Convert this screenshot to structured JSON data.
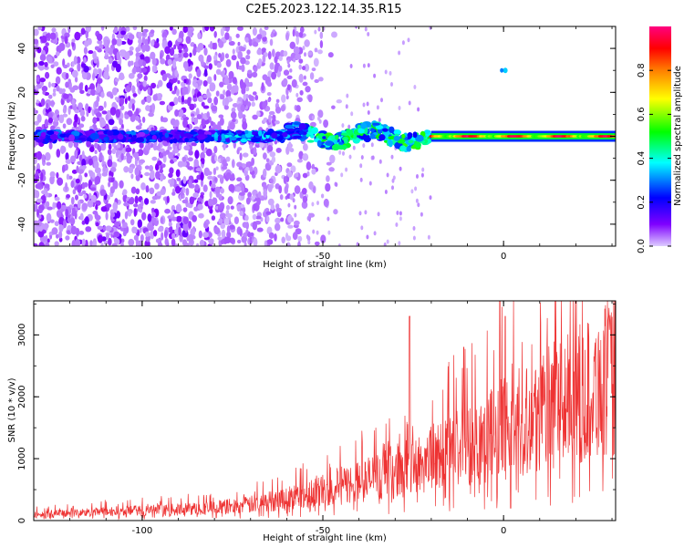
{
  "title": "C2E5.2023.122.14.35.R15",
  "chart_data": [
    {
      "type": "heatmap",
      "xlabel": "Height of straight line (km)",
      "ylabel": "Frequency (Hz)",
      "xlim": [
        -130,
        31
      ],
      "ylim": [
        -50,
        50
      ],
      "x_ticks": [
        -100,
        -50,
        0
      ],
      "x_tick_labels": [
        "-100",
        "-50",
        "0"
      ],
      "y_ticks": [
        -40,
        -20,
        0,
        20,
        40
      ],
      "y_tick_labels": [
        "-40",
        "-20",
        "0",
        "20",
        "40"
      ],
      "colorbar": {
        "label": "Normalized spectral amplitude",
        "range": [
          0,
          1
        ],
        "ticks": [
          0,
          0.2,
          0.4,
          0.6,
          0.8
        ],
        "tick_labels": [
          "0.0",
          "0.2",
          "0.4",
          "0.6",
          "0.8"
        ],
        "colors": [
          "#ddccff",
          "#7f00ff",
          "#0000ff",
          "#00ffff",
          "#00ff00",
          "#ffff00",
          "#ff7f00",
          "#ff0000",
          "#ff0080"
        ]
      },
      "features": {
        "signal_band_center_hz": 0,
        "noise_extent_km": [
          -130,
          -55
        ],
        "strong_tone_from_km": -20,
        "isolated_spot": {
          "x": 0.5,
          "y": 30
        }
      },
      "grid": false
    },
    {
      "type": "line",
      "xlabel": "Height of straight line (km)",
      "ylabel": "SNR (10 * v/v)",
      "xlim": [
        -130,
        31
      ],
      "ylim": [
        0,
        3550
      ],
      "x_ticks": [
        -100,
        -50,
        0
      ],
      "x_tick_labels": [
        "-100",
        "-50",
        "0"
      ],
      "y_ticks": [
        0,
        1000,
        2000,
        3000
      ],
      "y_tick_labels": [
        "0",
        "1000",
        "2000",
        "3000"
      ],
      "series_color": "#ee3333",
      "envelope": {
        "x": [
          -130,
          -110,
          -90,
          -80,
          -70,
          -60,
          -50,
          -40,
          -30,
          -20,
          -10,
          0,
          10,
          20,
          31
        ],
        "y": [
          120,
          180,
          220,
          260,
          320,
          450,
          620,
          780,
          1000,
          1250,
          1550,
          1850,
          2200,
          2500,
          2900
        ]
      },
      "spikes": [
        {
          "x": -26,
          "y": 3300
        },
        {
          "x": -11,
          "y": 2800
        },
        {
          "x": -1,
          "y": 3550
        },
        {
          "x": 0.5,
          "y": 3300
        },
        {
          "x": 2,
          "y": 200
        }
      ],
      "grid": false
    }
  ]
}
